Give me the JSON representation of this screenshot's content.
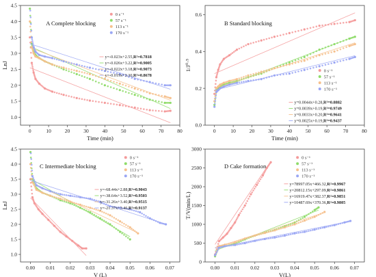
{
  "colors": {
    "s0": "#f49a9a",
    "s57": "#8fdc6a",
    "s113": "#f6c08c",
    "s170": "#9aa6f4"
  },
  "chart_data": [
    {
      "type": "scatter",
      "panel": "A",
      "title": "A   Complete blocking",
      "xlabel": "Time (min)",
      "ylabel": "LnJ",
      "xlim": [
        -5,
        80
      ],
      "ylim": [
        0.75,
        4.5
      ],
      "xticks": [
        "0",
        "10",
        "20",
        "30",
        "40",
        "50",
        "60",
        "70",
        "80"
      ],
      "xtickvals": [
        0,
        10,
        20,
        30,
        40,
        50,
        60,
        70,
        80
      ],
      "yticks": [
        "1.0",
        "1.5",
        "2.0",
        "2.5",
        "3.0",
        "3.5",
        "4.0",
        "4.5"
      ],
      "ytickvals": [
        1.0,
        1.5,
        2.0,
        2.5,
        3.0,
        3.5,
        4.0,
        4.5
      ],
      "legend": [
        "0 s⁻¹",
        "57 s⁻¹",
        "113 s⁻¹",
        "170 s⁻¹"
      ],
      "equations": [
        [
          "y=-0.023x+2.55,",
          "R²=0.7818"
        ],
        [
          "y=-0.026x+3.22,",
          "R²=0.9005"
        ],
        [
          "y=-0.022x+3.18,",
          "R²=0.9073"
        ],
        [
          "y=-0.019x+3.30,",
          "R²=0.8678"
        ]
      ],
      "series": [
        {
          "name": "0 s⁻¹",
          "color": "s0",
          "x": [
            0,
            1,
            2,
            3,
            5,
            8,
            12,
            18,
            25,
            32,
            40,
            48,
            56,
            64,
            72,
            75
          ],
          "y": [
            3.5,
            2.7,
            2.4,
            2.2,
            2.05,
            1.9,
            1.8,
            1.7,
            1.6,
            1.52,
            1.45,
            1.38,
            1.3,
            1.22,
            1.18,
            1.2
          ],
          "fit": [
            -0.023,
            2.55
          ]
        },
        {
          "name": "57 s⁻¹",
          "color": "s57",
          "x": [
            0,
            1,
            2,
            3,
            5,
            8,
            12,
            18,
            25,
            32,
            40,
            48,
            56,
            64,
            72,
            75
          ],
          "y": [
            4.4,
            3.3,
            3.05,
            2.95,
            2.85,
            2.75,
            2.65,
            2.5,
            2.35,
            2.2,
            2.0,
            1.85,
            1.7,
            1.55,
            1.45,
            1.45
          ],
          "fit": [
            -0.026,
            3.22
          ]
        },
        {
          "name": "113 s⁻¹",
          "color": "s113",
          "x": [
            0,
            1,
            2,
            3,
            5,
            8,
            12,
            18,
            25,
            32,
            40,
            48,
            56,
            64,
            72,
            75
          ],
          "y": [
            4.0,
            3.2,
            3.0,
            2.9,
            2.85,
            2.75,
            2.65,
            2.55,
            2.45,
            2.35,
            2.2,
            2.05,
            1.9,
            1.75,
            1.65,
            1.6
          ],
          "fit": [
            -0.022,
            3.18
          ]
        },
        {
          "name": "170 s⁻¹",
          "color": "s170",
          "x": [
            0,
            1,
            2,
            3,
            5,
            8,
            12,
            18,
            25,
            32,
            40,
            48,
            56,
            64,
            72,
            75
          ],
          "y": [
            4.55,
            3.5,
            3.2,
            3.05,
            2.95,
            2.9,
            2.85,
            2.75,
            2.65,
            2.55,
            2.45,
            2.35,
            2.2,
            2.1,
            2.0,
            2.0
          ],
          "fit": [
            -0.019,
            3.3
          ]
        }
      ]
    },
    {
      "type": "scatter",
      "panel": "B",
      "title": "B   Standard blocking",
      "xlabel": "Time (min)",
      "ylabel": "1/J⁰·⁵",
      "xlim": [
        -5,
        80
      ],
      "ylim": [
        0.0,
        0.65
      ],
      "xticks": [
        "0",
        "10",
        "20",
        "30",
        "40",
        "50",
        "60",
        "70",
        "80"
      ],
      "xtickvals": [
        0,
        10,
        20,
        30,
        40,
        50,
        60,
        70,
        80
      ],
      "yticks": [
        "0.0",
        "0.2",
        "0.4",
        "0.6"
      ],
      "ytickvals": [
        0.0,
        0.2,
        0.4,
        0.6
      ],
      "legend": [
        "0 s⁻¹",
        "57 s⁻¹",
        "113 s⁻¹",
        "170 s⁻¹"
      ],
      "equations": [
        [
          "y=0.0044x+0.28,",
          "R²=0.8882"
        ],
        [
          "y=0.0039x+0.19,",
          "R²=0.9749"
        ],
        [
          "y=0.0033x+0.20,",
          "R²=0.9641"
        ],
        [
          "y=0.0025x+0.19,",
          "R²=0.9437"
        ]
      ],
      "series": [
        {
          "name": "0 s⁻¹",
          "color": "s0",
          "x": [
            0,
            1,
            2,
            3,
            5,
            8,
            12,
            18,
            25,
            32,
            40,
            48,
            56,
            64,
            72,
            75
          ],
          "y": [
            0.17,
            0.26,
            0.3,
            0.33,
            0.36,
            0.38,
            0.41,
            0.44,
            0.46,
            0.48,
            0.5,
            0.52,
            0.54,
            0.55,
            0.56,
            0.57
          ],
          "fit": [
            0.0044,
            0.28
          ]
        },
        {
          "name": "57 s⁻¹",
          "color": "s57",
          "x": [
            0,
            1,
            2,
            3,
            5,
            8,
            12,
            18,
            25,
            32,
            40,
            48,
            56,
            64,
            72,
            75
          ],
          "y": [
            0.11,
            0.19,
            0.2,
            0.21,
            0.22,
            0.23,
            0.24,
            0.26,
            0.28,
            0.31,
            0.34,
            0.37,
            0.41,
            0.44,
            0.47,
            0.48
          ],
          "fit": [
            0.0039,
            0.19
          ]
        },
        {
          "name": "113 s⁻¹",
          "color": "s113",
          "x": [
            0,
            1,
            2,
            3,
            5,
            8,
            12,
            18,
            25,
            32,
            40,
            48,
            56,
            64,
            72,
            75
          ],
          "y": [
            0.13,
            0.2,
            0.21,
            0.22,
            0.23,
            0.24,
            0.25,
            0.27,
            0.29,
            0.31,
            0.33,
            0.35,
            0.38,
            0.4,
            0.43,
            0.44
          ],
          "fit": [
            0.0033,
            0.2
          ]
        },
        {
          "name": "170 s⁻¹",
          "color": "s170",
          "x": [
            0,
            1,
            2,
            3,
            5,
            8,
            12,
            18,
            25,
            32,
            40,
            48,
            56,
            64,
            72,
            75
          ],
          "y": [
            0.1,
            0.18,
            0.19,
            0.2,
            0.21,
            0.22,
            0.23,
            0.24,
            0.25,
            0.27,
            0.28,
            0.3,
            0.32,
            0.34,
            0.36,
            0.37
          ],
          "fit": [
            0.0025,
            0.19
          ]
        }
      ]
    },
    {
      "type": "scatter",
      "panel": "C",
      "title": "C   Intermediate blocking",
      "xlabel": "V (L)",
      "ylabel": "LnJ",
      "xlim": [
        -0.005,
        0.075
      ],
      "ylim": [
        0.75,
        4.5
      ],
      "xticks": [
        "0.00",
        "0.01",
        "0.02",
        "0.03",
        "0.04",
        "0.05",
        "0.06",
        "0.07"
      ],
      "xtickvals": [
        0,
        0.01,
        0.02,
        0.03,
        0.04,
        0.05,
        0.06,
        0.07
      ],
      "yticks": [
        "1.0",
        "1.5",
        "2.0",
        "2.5",
        "3.0",
        "3.5",
        "4.0",
        "4.5"
      ],
      "ytickvals": [
        1.0,
        1.5,
        2.0,
        2.5,
        3.0,
        3.5,
        4.0,
        4.5
      ],
      "legend": [
        "0 s⁻¹",
        "57 s⁻¹",
        "113 s⁻¹",
        "170 s⁻¹"
      ],
      "equations": [
        [
          "y=-68.44x+2.88,",
          "R²=0.9043"
        ],
        [
          "y=-38.64x+3.52,",
          "R²=0.9503"
        ],
        [
          "y=-31.26x+3.40,",
          "R²=0.9515"
        ],
        [
          "y=-21.37x+3.46,",
          "R²=0.9137"
        ]
      ],
      "series": [
        {
          "name": "0 s⁻¹",
          "color": "s0",
          "x": [
            0,
            0.001,
            0.002,
            0.004,
            0.006,
            0.009,
            0.012,
            0.015,
            0.018,
            0.021,
            0.024,
            0.026,
            0.028
          ],
          "y": [
            3.5,
            2.9,
            2.7,
            2.5,
            2.35,
            2.15,
            1.95,
            1.75,
            1.6,
            1.45,
            1.3,
            1.2,
            1.2
          ],
          "fit": [
            -68.44,
            2.88
          ]
        },
        {
          "name": "57 s⁻¹",
          "color": "s57",
          "x": [
            0,
            0.001,
            0.003,
            0.006,
            0.01,
            0.015,
            0.02,
            0.025,
            0.03,
            0.035,
            0.04,
            0.045,
            0.05
          ],
          "y": [
            4.4,
            3.5,
            3.2,
            3.05,
            2.95,
            2.8,
            2.7,
            2.55,
            2.4,
            2.2,
            2.0,
            1.75,
            1.5
          ],
          "fit": [
            -38.64,
            3.52
          ]
        },
        {
          "name": "113 s⁻¹",
          "color": "s113",
          "x": [
            0,
            0.001,
            0.003,
            0.006,
            0.01,
            0.015,
            0.02,
            0.025,
            0.03,
            0.035,
            0.04,
            0.045,
            0.05,
            0.054
          ],
          "y": [
            4.0,
            3.4,
            3.15,
            3.05,
            2.95,
            2.85,
            2.75,
            2.65,
            2.55,
            2.45,
            2.3,
            2.1,
            1.9,
            1.7
          ],
          "fit": [
            -31.26,
            3.4
          ]
        },
        {
          "name": "170 s⁻¹",
          "color": "s170",
          "x": [
            0,
            0.001,
            0.003,
            0.006,
            0.01,
            0.015,
            0.02,
            0.025,
            0.03,
            0.035,
            0.04,
            0.045,
            0.05,
            0.055,
            0.06,
            0.065,
            0.068
          ],
          "y": [
            4.55,
            3.6,
            3.3,
            3.2,
            3.1,
            3.0,
            2.95,
            2.9,
            2.85,
            2.75,
            2.6,
            2.55,
            2.5,
            2.4,
            2.2,
            2.05,
            2.0
          ],
          "fit": [
            -21.37,
            3.46
          ]
        }
      ]
    },
    {
      "type": "scatter",
      "panel": "D",
      "title": "D   Cake formation",
      "xlabel": "V(L)",
      "ylabel": "T/V(min/L)",
      "xlim": [
        -0.005,
        0.075
      ],
      "ylim": [
        0,
        3000
      ],
      "xticks": [
        "0.00",
        "0.01",
        "0.02",
        "0.03",
        "0.04",
        "0.05",
        "0.06",
        "0.07"
      ],
      "xtickvals": [
        0,
        0.01,
        0.02,
        0.03,
        0.04,
        0.05,
        0.06,
        0.07
      ],
      "yticks": [
        "0",
        "500",
        "1000",
        "1500",
        "2000",
        "2500",
        "3000"
      ],
      "ytickvals": [
        0,
        500,
        1000,
        1500,
        2000,
        2500,
        3000
      ],
      "legend": [
        "0 s⁻¹",
        "57 s⁻¹",
        "113 s⁻¹",
        "170 s⁻¹"
      ],
      "equations": [
        [
          "y=78997.05x+466.32,",
          "R²=0.9967"
        ],
        [
          "y=20812.15x+297.09,",
          "R²=0.9861"
        ],
        [
          "y=16919.47x+382.37,",
          "R²=0.9851"
        ],
        [
          "y=10487.69x+370.36,",
          "R²=0.9805"
        ]
      ],
      "series": [
        {
          "name": "0 s⁻¹",
          "color": "s0",
          "x": [
            0,
            0.002,
            0.004,
            0.006,
            0.008,
            0.01,
            0.012,
            0.015,
            0.018,
            0.021,
            0.024,
            0.026,
            0.028
          ],
          "y": [
            200,
            550,
            650,
            750,
            900,
            1050,
            1250,
            1500,
            1800,
            2050,
            2300,
            2500,
            2650
          ],
          "fit": [
            78997.05,
            466.32
          ]
        },
        {
          "name": "57 s⁻¹",
          "color": "s57",
          "x": [
            0,
            0.002,
            0.005,
            0.01,
            0.015,
            0.02,
            0.025,
            0.03,
            0.035,
            0.04,
            0.045,
            0.05,
            0.052
          ],
          "y": [
            150,
            400,
            420,
            480,
            600,
            700,
            780,
            850,
            950,
            1050,
            1200,
            1380,
            1450
          ],
          "fit": [
            20812.15,
            297.09
          ]
        },
        {
          "name": "113 s⁻¹",
          "color": "s113",
          "x": [
            0,
            0.002,
            0.005,
            0.01,
            0.015,
            0.02,
            0.025,
            0.03,
            0.035,
            0.04,
            0.045,
            0.05,
            0.055
          ],
          "y": [
            180,
            420,
            460,
            520,
            620,
            700,
            770,
            840,
            920,
            1000,
            1100,
            1200,
            1330
          ],
          "fit": [
            16919.47,
            382.37
          ]
        },
        {
          "name": "170 s⁻¹",
          "color": "s170",
          "x": [
            0,
            0.002,
            0.005,
            0.01,
            0.015,
            0.02,
            0.025,
            0.03,
            0.035,
            0.04,
            0.045,
            0.05,
            0.055,
            0.06,
            0.065,
            0.068
          ],
          "y": [
            180,
            380,
            420,
            450,
            500,
            560,
            610,
            650,
            700,
            760,
            800,
            860,
            920,
            980,
            1050,
            1090
          ],
          "fit": [
            10487.69,
            370.36
          ]
        }
      ]
    }
  ]
}
